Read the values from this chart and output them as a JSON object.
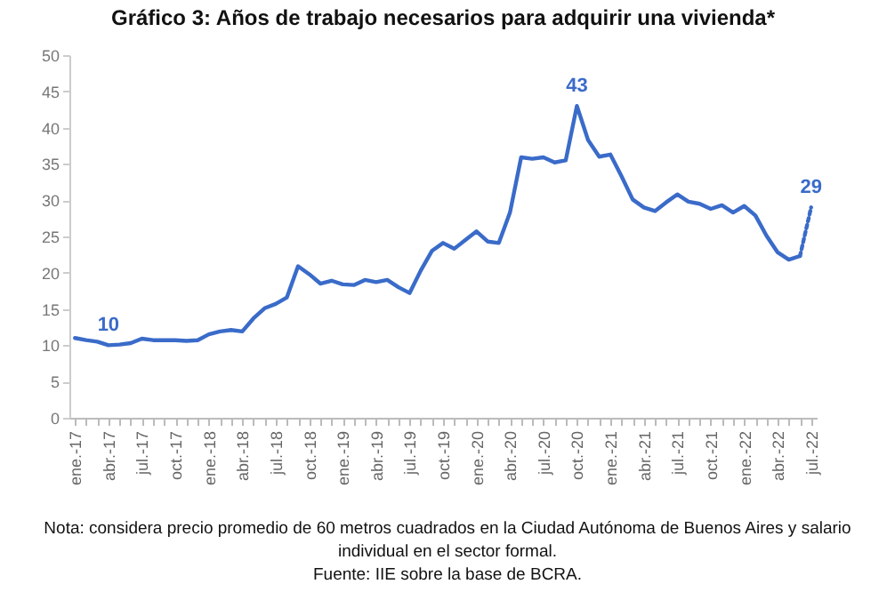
{
  "chart_data": {
    "type": "line",
    "title": "Gráfico 3: Años de trabajo necesarios para adquirir una vivienda*",
    "categories": [
      "ene.-17",
      null,
      null,
      "abr.-17",
      null,
      null,
      "jul.-17",
      null,
      null,
      "oct.-17",
      null,
      null,
      "ene.-18",
      null,
      null,
      "abr.-18",
      null,
      null,
      "jul.-18",
      null,
      null,
      "oct.-18",
      null,
      null,
      "ene.-19",
      null,
      null,
      "abr.-19",
      null,
      null,
      "jul.-19",
      null,
      null,
      "oct.-19",
      null,
      null,
      "ene.-20",
      null,
      null,
      "abr.-20",
      null,
      null,
      "jul.-20",
      null,
      null,
      "oct.-20",
      null,
      null,
      "ene.-21",
      null,
      null,
      "abr.-21",
      null,
      null,
      "jul.-21",
      null,
      null,
      "oct.-21",
      null,
      null,
      "ene.-22",
      null,
      null,
      "abr.-22",
      null,
      null,
      "jul.-22"
    ],
    "series": [
      {
        "color": "#3a6bc9",
        "line_style": "solid",
        "values": [
          11.0,
          10.7,
          10.5,
          10.0,
          10.1,
          10.3,
          10.9,
          10.7,
          10.7,
          10.7,
          10.6,
          10.7,
          11.5,
          11.9,
          12.1,
          11.9,
          13.7,
          15.1,
          15.7,
          16.6,
          20.9,
          19.8,
          18.5,
          18.9,
          18.4,
          18.3,
          19.0,
          18.7,
          19.0,
          18.0,
          17.2,
          20.3,
          23.0,
          24.1,
          23.3,
          24.5,
          25.7,
          24.3,
          24.1,
          28.3,
          35.9,
          35.7,
          35.9,
          35.2,
          35.5,
          43.0,
          38.3,
          36.0,
          36.3,
          33.3,
          30.1,
          29.0,
          28.5,
          29.7,
          30.8,
          29.8,
          29.5,
          28.8,
          29.3,
          28.3,
          29.2,
          27.9,
          25.1,
          22.8,
          21.8,
          22.3,
          null
        ]
      },
      {
        "color": "#3a6bc9",
        "line_style": "dotted",
        "values": [
          null,
          null,
          null,
          null,
          null,
          null,
          null,
          null,
          null,
          null,
          null,
          null,
          null,
          null,
          null,
          null,
          null,
          null,
          null,
          null,
          null,
          null,
          null,
          null,
          null,
          null,
          null,
          null,
          null,
          null,
          null,
          null,
          null,
          null,
          null,
          null,
          null,
          null,
          null,
          null,
          null,
          null,
          null,
          null,
          null,
          null,
          null,
          null,
          null,
          null,
          null,
          null,
          null,
          null,
          null,
          null,
          null,
          null,
          null,
          null,
          null,
          null,
          null,
          null,
          null,
          22.3,
          29.0
        ]
      }
    ],
    "ylim": [
      0,
      50
    ],
    "yticks": [
      0,
      5,
      10,
      15,
      20,
      25,
      30,
      35,
      40,
      45,
      50
    ],
    "grid": false,
    "marker": "none",
    "annotations": [
      {
        "text": "10",
        "x": "abr.-17",
        "y": 10
      },
      {
        "text": "43",
        "x": "oct.-20",
        "y": 43
      },
      {
        "text": "29",
        "x": "jul.-22",
        "y": 29
      },
      "Nota: considera precio promedio de 60 metros cuadrados en la Ciudad Autónoma de Buenos Aires y salario individual en el sector formal.",
      "Fuente: IIE sobre la base de BCRA."
    ]
  }
}
